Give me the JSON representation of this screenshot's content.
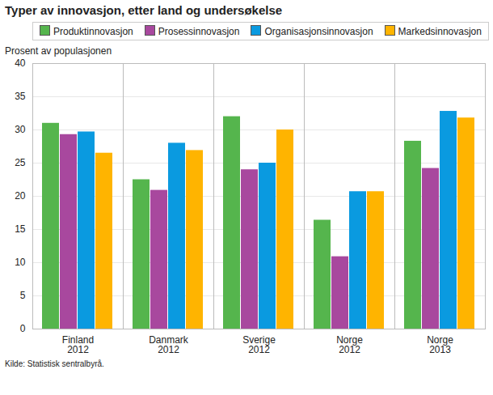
{
  "chart_data": {
    "type": "bar",
    "title": "Typer av innovasjon, etter land og undersøkelse",
    "y_label": "Prosent av populasjonen",
    "caption": "Kilde: Statistisk sentralbyrå.",
    "categories": [
      "Finland\n2012",
      "Danmark\n2012",
      "Sverige\n2012",
      "Norge\n2012",
      "Norge\n2013"
    ],
    "series": [
      {
        "name": "Produktinnovasjon",
        "color": "#55b54d",
        "values": [
          31,
          22.5,
          32,
          16.4,
          28.3
        ]
      },
      {
        "name": "Prosessinnovasjon",
        "color": "#a8489e",
        "values": [
          29.3,
          20.9,
          24,
          10.9,
          24.2
        ]
      },
      {
        "name": "Organisasjonsinnovasjon",
        "color": "#0a9ae0",
        "values": [
          29.7,
          28,
          25,
          20.7,
          32.8
        ]
      },
      {
        "name": "Markedsinnovasjon",
        "color": "#ffb400",
        "values": [
          26.5,
          26.9,
          30,
          20.7,
          31.8
        ]
      }
    ],
    "ylim": [
      0,
      40
    ],
    "yticks": [
      0,
      5,
      10,
      15,
      20,
      25,
      30,
      35,
      40
    ],
    "grid": true,
    "legend": "top-left"
  }
}
